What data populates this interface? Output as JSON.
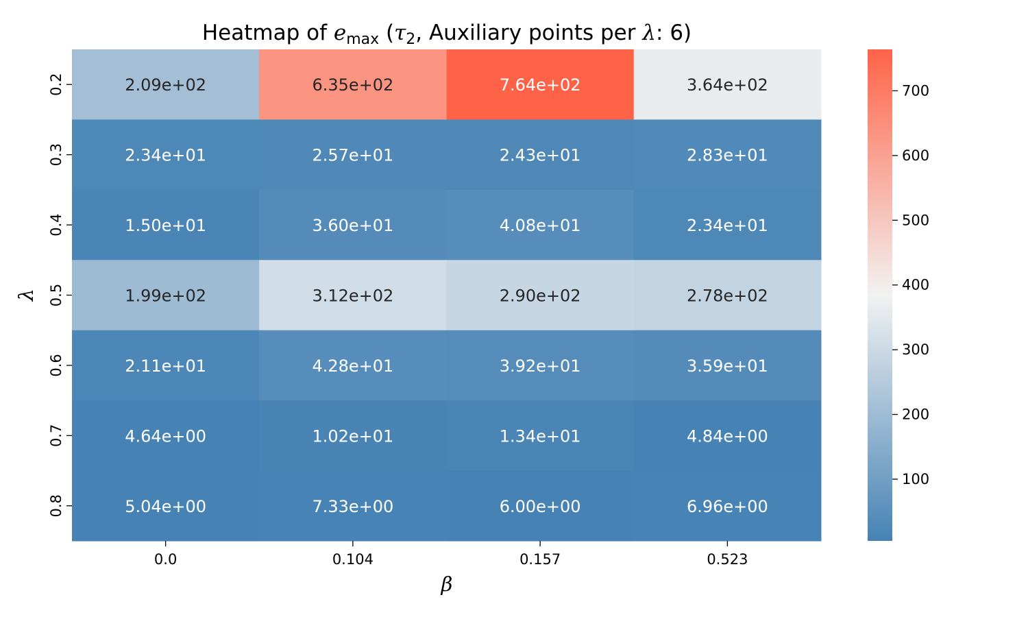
{
  "chart_data": {
    "type": "heatmap",
    "title": {
      "prefix": "Heatmap of ",
      "var": "e",
      "sub": "max",
      "mid": " (",
      "tau": "τ",
      "tau_sub": "2",
      "rest": ", Auxiliary points per ",
      "lambda": "λ",
      "tail": ": 6)"
    },
    "xlabel": "β",
    "ylabel": "λ",
    "x_categories": [
      "0.0",
      "0.104",
      "0.157",
      "0.523"
    ],
    "y_categories": [
      "0.2",
      "0.3",
      "0.4",
      "0.5",
      "0.6",
      "0.7",
      "0.8"
    ],
    "values": [
      [
        209,
        635,
        764,
        364
      ],
      [
        23.4,
        25.7,
        24.3,
        28.3
      ],
      [
        15.0,
        36.0,
        40.8,
        23.4
      ],
      [
        199,
        312,
        290,
        278
      ],
      [
        21.1,
        42.8,
        39.2,
        35.9
      ],
      [
        4.64,
        10.2,
        13.4,
        4.84
      ],
      [
        5.04,
        7.33,
        6.0,
        6.96
      ]
    ],
    "annotations": [
      [
        "2.09e+02",
        "6.35e+02",
        "7.64e+02",
        "3.64e+02"
      ],
      [
        "2.34e+01",
        "2.57e+01",
        "2.43e+01",
        "2.83e+01"
      ],
      [
        "1.50e+01",
        "3.60e+01",
        "4.08e+01",
        "2.34e+01"
      ],
      [
        "1.99e+02",
        "3.12e+02",
        "2.90e+02",
        "2.78e+02"
      ],
      [
        "2.11e+01",
        "4.28e+01",
        "3.92e+01",
        "3.59e+01"
      ],
      [
        "4.64e+00",
        "1.02e+01",
        "1.34e+01",
        "4.84e+00"
      ],
      [
        "5.04e+00",
        "7.33e+00",
        "6.00e+00",
        "6.96e+00"
      ]
    ],
    "colorbar": {
      "vmin": 4.64,
      "vmax": 764,
      "ticks": [
        100,
        200,
        300,
        400,
        500,
        600,
        700
      ],
      "colormap": "diverging blue-white-red",
      "low_color": "#4682b4",
      "mid_color": "#f2f2f2",
      "high_color": "#ff6347"
    }
  }
}
